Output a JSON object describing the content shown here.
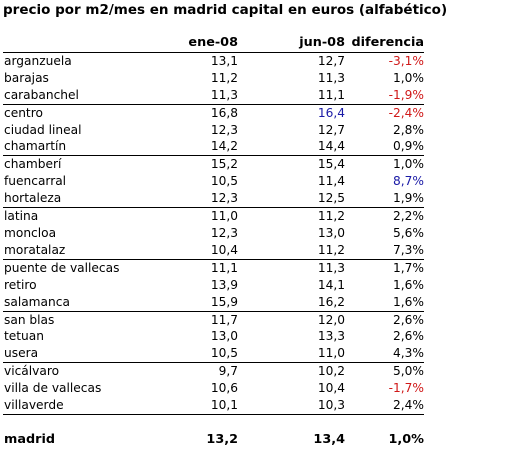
{
  "title": "precio por m2/mes en madrid capital en euros (alfabético)",
  "columns": [
    "",
    "ene-08",
    "jun-08",
    "diferencia"
  ],
  "colors": {
    "negative": "#d01818",
    "highlight": "#1a1aa6"
  },
  "groups": [
    [
      {
        "name": "arganzuela",
        "ene": "13,1",
        "jun": "12,7",
        "diff": "-3,1%",
        "diff_style": "neg",
        "jun_style": ""
      },
      {
        "name": "barajas",
        "ene": "11,2",
        "jun": "11,3",
        "diff": "1,0%",
        "diff_style": "",
        "jun_style": ""
      },
      {
        "name": "carabanchel",
        "ene": "11,3",
        "jun": "11,1",
        "diff": "-1,9%",
        "diff_style": "neg",
        "jun_style": ""
      }
    ],
    [
      {
        "name": "centro",
        "ene": "16,8",
        "jun": "16,4",
        "diff": "-2,4%",
        "diff_style": "neg",
        "jun_style": "blue"
      },
      {
        "name": "ciudad lineal",
        "ene": "12,3",
        "jun": "12,7",
        "diff": "2,8%",
        "diff_style": "",
        "jun_style": ""
      },
      {
        "name": "chamartín",
        "ene": "14,2",
        "jun": "14,4",
        "diff": "0,9%",
        "diff_style": "",
        "jun_style": ""
      }
    ],
    [
      {
        "name": "chamberí",
        "ene": "15,2",
        "jun": "15,4",
        "diff": "1,0%",
        "diff_style": "",
        "jun_style": ""
      },
      {
        "name": "fuencarral",
        "ene": "10,5",
        "jun": "11,4",
        "diff": "8,7%",
        "diff_style": "blue",
        "jun_style": ""
      },
      {
        "name": "hortaleza",
        "ene": "12,3",
        "jun": "12,5",
        "diff": "1,9%",
        "diff_style": "",
        "jun_style": ""
      }
    ],
    [
      {
        "name": "latina",
        "ene": "11,0",
        "jun": "11,2",
        "diff": "2,2%",
        "diff_style": "",
        "jun_style": ""
      },
      {
        "name": "moncloa",
        "ene": "12,3",
        "jun": "13,0",
        "diff": "5,6%",
        "diff_style": "",
        "jun_style": ""
      },
      {
        "name": "moratalaz",
        "ene": "10,4",
        "jun": "11,2",
        "diff": "7,3%",
        "diff_style": "",
        "jun_style": ""
      }
    ],
    [
      {
        "name": "puente de vallecas",
        "ene": "11,1",
        "jun": "11,3",
        "diff": "1,7%",
        "diff_style": "",
        "jun_style": ""
      },
      {
        "name": "retiro",
        "ene": "13,9",
        "jun": "14,1",
        "diff": "1,6%",
        "diff_style": "",
        "jun_style": ""
      },
      {
        "name": "salamanca",
        "ene": "15,9",
        "jun": "16,2",
        "diff": "1,6%",
        "diff_style": "",
        "jun_style": ""
      }
    ],
    [
      {
        "name": "san blas",
        "ene": "11,7",
        "jun": "12,0",
        "diff": "2,6%",
        "diff_style": "",
        "jun_style": ""
      },
      {
        "name": "tetuan",
        "ene": "13,0",
        "jun": "13,3",
        "diff": "2,6%",
        "diff_style": "",
        "jun_style": ""
      },
      {
        "name": "usera",
        "ene": "10,5",
        "jun": "11,0",
        "diff": "4,3%",
        "diff_style": "",
        "jun_style": ""
      }
    ],
    [
      {
        "name": "vicálvaro",
        "ene": "9,7",
        "jun": "10,2",
        "diff": "5,0%",
        "diff_style": "",
        "jun_style": ""
      },
      {
        "name": "villa de vallecas",
        "ene": "10,6",
        "jun": "10,4",
        "diff": "-1,7%",
        "diff_style": "neg",
        "jun_style": ""
      },
      {
        "name": "villaverde",
        "ene": "10,1",
        "jun": "10,3",
        "diff": "2,4%",
        "diff_style": "",
        "jun_style": ""
      }
    ]
  ],
  "total": {
    "name": "madrid",
    "ene": "13,2",
    "jun": "13,4",
    "diff": "1,0%"
  }
}
